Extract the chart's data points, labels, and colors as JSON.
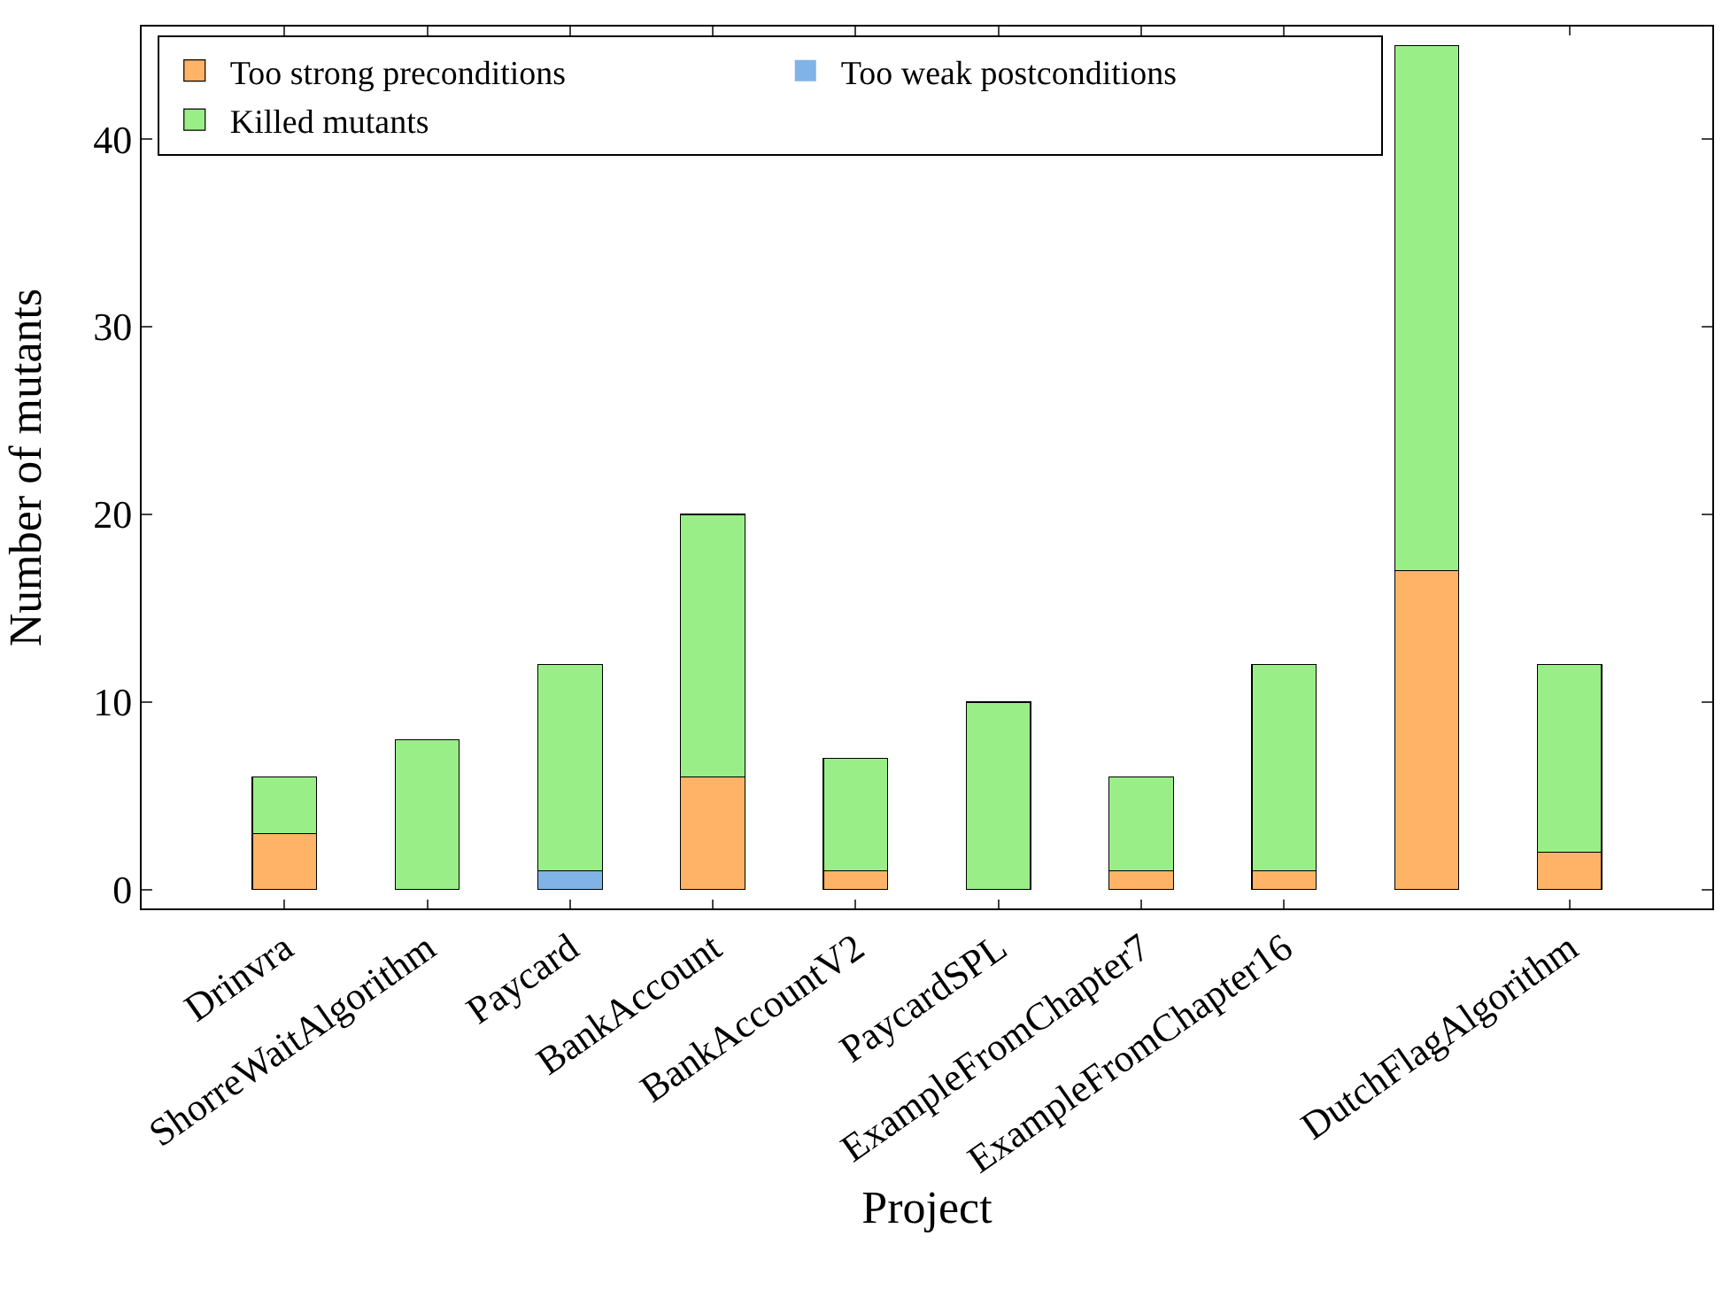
{
  "chart_data": {
    "type": "bar",
    "stacked": true,
    "xlabel": "Project",
    "ylabel": "Number of mutants",
    "categories": [
      "Drinvra",
      "ShorreWaitAlgorithm",
      "Paycard",
      "BankAccount",
      "BankAccountV2",
      "PaycardSPL",
      "ExampleFromChapter7",
      "ExampleFromChapter16",
      null,
      "DutchFlagAlgorithm"
    ],
    "series": [
      {
        "name": "Too strong preconditions",
        "color": "#ffb366",
        "values": [
          3,
          0,
          0,
          6,
          1,
          0,
          1,
          1,
          17,
          2
        ]
      },
      {
        "name": "Too weak postconditions",
        "color": "#80b3e6",
        "values": [
          0,
          0,
          1,
          0,
          0,
          0,
          0,
          0,
          0,
          0
        ]
      },
      {
        "name": "Killed mutants",
        "color": "#99ee88",
        "values": [
          3,
          8,
          11,
          14,
          6,
          10,
          5,
          11,
          28,
          10
        ]
      }
    ],
    "ylim": [
      -1,
      46
    ],
    "yticks": [
      0,
      10,
      20,
      30,
      40
    ],
    "grid": false,
    "legend": "top left"
  }
}
